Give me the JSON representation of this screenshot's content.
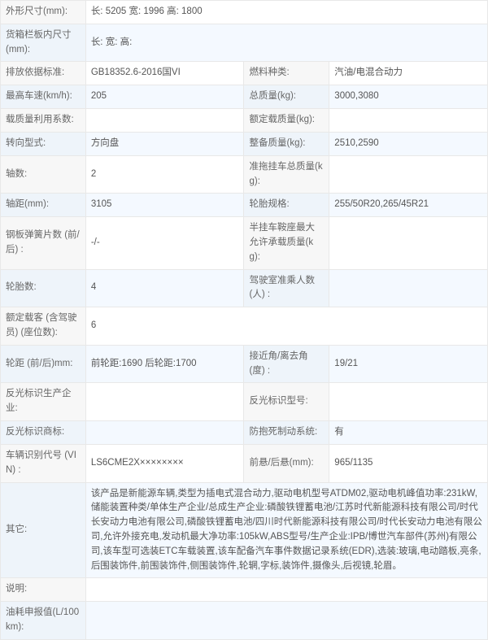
{
  "rows": [
    {
      "cells": [
        {
          "t": "l",
          "k": "外形尺寸(mm):"
        },
        {
          "t": "v",
          "k": "长: 5205 宽: 1996 高: 1800",
          "span": 3
        }
      ]
    },
    {
      "cells": [
        {
          "t": "l",
          "k": "货箱栏板内尺寸(mm):"
        },
        {
          "t": "v",
          "k": "长:   宽:   高:",
          "span": 3
        }
      ],
      "hl": true
    },
    {
      "cells": [
        {
          "t": "l",
          "k": "排放依据标准:"
        },
        {
          "t": "v",
          "k": "GB18352.6-2016国VI"
        },
        {
          "t": "l",
          "k": "燃料种类:"
        },
        {
          "t": "v",
          "k": "汽油/电混合动力"
        }
      ]
    },
    {
      "cells": [
        {
          "t": "l",
          "k": "最高车速(km/h):"
        },
        {
          "t": "v",
          "k": "205"
        },
        {
          "t": "l",
          "k": "总质量(kg):"
        },
        {
          "t": "v",
          "k": "3000,3080"
        }
      ],
      "hl": true
    },
    {
      "cells": [
        {
          "t": "l",
          "k": "载质量利用系数:"
        },
        {
          "t": "v",
          "k": ""
        },
        {
          "t": "l",
          "k": "额定载质量(kg):"
        },
        {
          "t": "v",
          "k": ""
        }
      ]
    },
    {
      "cells": [
        {
          "t": "l",
          "k": "转向型式:"
        },
        {
          "t": "v",
          "k": "方向盘"
        },
        {
          "t": "l",
          "k": "整备质量(kg):"
        },
        {
          "t": "v",
          "k": "2510,2590"
        }
      ],
      "hl": true
    },
    {
      "cells": [
        {
          "t": "l",
          "k": "轴数:"
        },
        {
          "t": "v",
          "k": "2"
        },
        {
          "t": "l",
          "k": "准拖挂车总质量(kg):"
        },
        {
          "t": "v",
          "k": ""
        }
      ]
    },
    {
      "cells": [
        {
          "t": "l",
          "k": "轴距(mm):"
        },
        {
          "t": "v",
          "k": "3105"
        },
        {
          "t": "l",
          "k": "轮胎规格:"
        },
        {
          "t": "v",
          "k": "255/50R20,265/45R21"
        }
      ],
      "hl": true
    },
    {
      "cells": [
        {
          "t": "l",
          "k": "钢板弹簧片数 (前/后) :"
        },
        {
          "t": "v",
          "k": "-/-"
        },
        {
          "t": "l",
          "k": "半挂车鞍座最大允许承载质量(kg):"
        },
        {
          "t": "v",
          "k": ""
        }
      ]
    },
    {
      "cells": [
        {
          "t": "l",
          "k": "轮胎数:"
        },
        {
          "t": "v",
          "k": "4"
        },
        {
          "t": "l",
          "k": "驾驶室准乘人数 (人) :"
        },
        {
          "t": "v",
          "k": ""
        }
      ],
      "hl": true
    },
    {
      "cells": [
        {
          "t": "l",
          "k": "额定载客 (含驾驶员) (座位数):"
        },
        {
          "t": "v",
          "k": "6",
          "span": 3
        }
      ]
    },
    {
      "cells": [
        {
          "t": "l",
          "k": "轮距 (前/后)mm:"
        },
        {
          "t": "v",
          "k": "前轮距:1690 后轮距:1700"
        },
        {
          "t": "l",
          "k": "接近角/离去角 (度) :"
        },
        {
          "t": "v",
          "k": "19/21"
        }
      ],
      "hl": true
    },
    {
      "cells": [
        {
          "t": "l",
          "k": "反光标识生产企业:"
        },
        {
          "t": "v",
          "k": ""
        },
        {
          "t": "l",
          "k": "反光标识型号:"
        },
        {
          "t": "v",
          "k": ""
        }
      ]
    },
    {
      "cells": [
        {
          "t": "l",
          "k": "反光标识商标:"
        },
        {
          "t": "v",
          "k": ""
        },
        {
          "t": "l",
          "k": "防抱死制动系统:"
        },
        {
          "t": "v",
          "k": "有"
        }
      ],
      "hl": true
    },
    {
      "cells": [
        {
          "t": "l",
          "k": "车辆识别代号 (VIN) :"
        },
        {
          "t": "v",
          "k": "LS6CME2X××××××××"
        },
        {
          "t": "l",
          "k": "前悬/后悬(mm):"
        },
        {
          "t": "v",
          "k": "965/1135"
        }
      ]
    },
    {
      "cells": [
        {
          "t": "l",
          "k": "其它:"
        },
        {
          "t": "v",
          "k": "该产品是新能源车辆,类型为插电式混合动力,驱动电机型号ATDM02,驱动电机峰值功率:231kW,储能装置种类/单体生产企业/总成生产企业:磷酸铁锂蓄电池/江苏时代新能源科技有限公司/时代长安动力电池有限公司,磷酸铁锂蓄电池/四川时代新能源科技有限公司/时代长安动力电池有限公司,允许外接充电,发动机最大净功率:105kW,ABS型号/生产企业:IPB/博世汽车部件(苏州)有限公司,该车型可选装ETC车载装置,该车配备汽车事件数据记录系统(EDR),选装:玻璃,电动踏板,亮条,后围装饰件,前围装饰件,侧围装饰件,轮辋,字标,装饰件,摄像头,后视镜,轮眉。",
          "span": 3
        }
      ],
      "hl": true
    },
    {
      "cells": [
        {
          "t": "l",
          "k": "说明:"
        },
        {
          "t": "v",
          "k": "",
          "span": 3
        }
      ]
    },
    {
      "cells": [
        {
          "t": "l",
          "k": "油耗申报值(L/100km):"
        },
        {
          "t": "v",
          "k": "",
          "span": 3
        }
      ],
      "hl": true
    }
  ],
  "colwidths": [
    "17.5%",
    "32.5%",
    "17.5%",
    "32.5%"
  ]
}
